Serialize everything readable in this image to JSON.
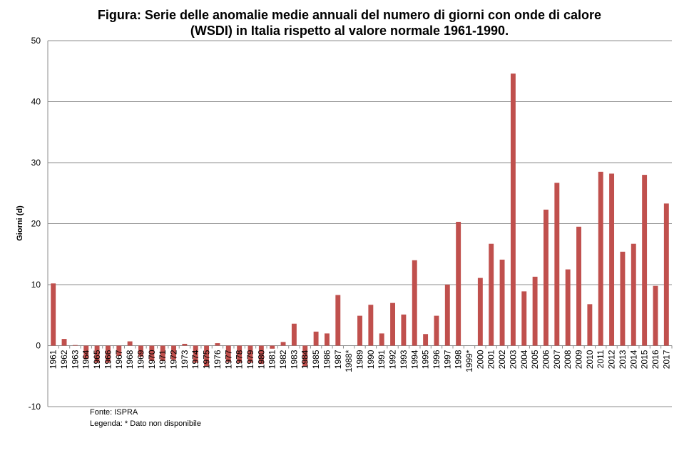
{
  "chart_data": {
    "type": "bar",
    "title_lines": [
      "Figura: Serie delle anomalie medie annuali del numero di giorni con onde di calore",
      "(WSDI) in Italia rispetto al valore normale 1961-1990."
    ],
    "ylabel": "Giorni (d)",
    "xlabel": "",
    "ylim": [
      -10,
      50
    ],
    "yticks": [
      -10,
      0,
      10,
      20,
      30,
      40,
      50
    ],
    "grid": true,
    "bar_color": "#C0504D",
    "categories": [
      "1961",
      "1962",
      "1963",
      "1964",
      "1965",
      "1966",
      "1967",
      "1968",
      "1969",
      "1970",
      "1971",
      "1972",
      "1973",
      "1974",
      "1975",
      "1976",
      "1977",
      "1978",
      "1979",
      "1980",
      "1981",
      "1982",
      "1983",
      "1984",
      "1985",
      "1986",
      "1987",
      "1988*",
      "1989",
      "1990",
      "1991",
      "1992",
      "1993",
      "1994",
      "1995",
      "1996",
      "1997",
      "1998",
      "1999*",
      "2000",
      "2001",
      "2002",
      "2003",
      "2004",
      "2005",
      "2006",
      "2007",
      "2008",
      "2009",
      "2010",
      "2011",
      "2012",
      "2013",
      "2014",
      "2015",
      "2016",
      "2017"
    ],
    "values": [
      10.2,
      1.1,
      0.1,
      -2.2,
      -2.8,
      -2.8,
      -1.7,
      0.7,
      -1.8,
      -2.5,
      -2.5,
      -2.3,
      0.3,
      -2.8,
      -3.4,
      0.4,
      -2.7,
      -2.8,
      -2.8,
      -3.0,
      -0.5,
      0.6,
      3.6,
      -3.4,
      2.3,
      2.0,
      8.3,
      null,
      4.9,
      6.7,
      2.0,
      7.0,
      5.1,
      14.0,
      1.9,
      4.9,
      10.0,
      20.3,
      null,
      11.1,
      16.7,
      14.1,
      44.6,
      8.9,
      11.3,
      22.3,
      26.7,
      12.5,
      19.5,
      6.8,
      28.5,
      28.2,
      15.4,
      16.7,
      28.0,
      9.8,
      23.3
    ]
  },
  "notes": {
    "source": "Fonte: ISPRA",
    "legend": "Legenda: * Dato non disponibile"
  }
}
